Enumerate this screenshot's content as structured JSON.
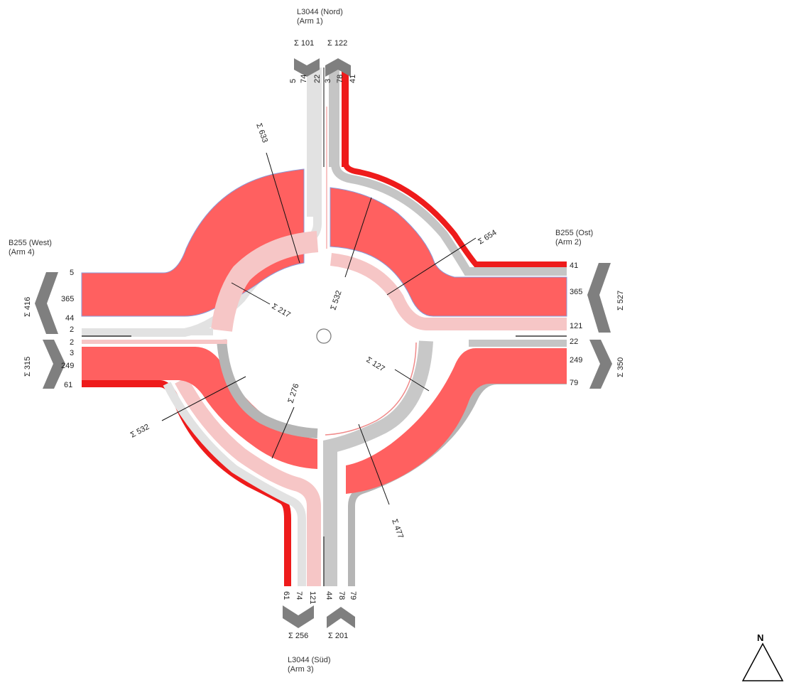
{
  "colors": {
    "red_heavy": "#ff6060",
    "red_strong": "#ee1b1b",
    "pink_light": "#f6c6c6",
    "gray": "#b5b5b5",
    "gray_light": "#e2e2e2",
    "arrow_gray": "#7f7f7f",
    "line": "#111111"
  },
  "arms": {
    "north": {
      "name": "L3044 (Nord)",
      "sub": "(Arm 1)",
      "sum_in": "Σ 101",
      "sum_out": "Σ 122",
      "lanes_in": [
        "5",
        "74",
        "22"
      ],
      "lanes_out": [
        "3",
        "78",
        "41"
      ]
    },
    "east": {
      "name": "B255 (Ost)",
      "sub": "(Arm 2)",
      "sum_in": "Σ 527",
      "sum_out": "Σ 350",
      "lanes_in": [
        "41",
        "365",
        "121"
      ],
      "lanes_out": [
        "22",
        "249",
        "79"
      ]
    },
    "south": {
      "name": "L3044 (Süd)",
      "sub": "(Arm 3)",
      "sum_in": "Σ 201",
      "sum_out": "Σ 256",
      "lanes_in": [
        "44",
        "78",
        "79"
      ],
      "lanes_out": [
        "61",
        "74",
        "121"
      ]
    },
    "west": {
      "name": "B255 (West)",
      "sub": "(Arm 4)",
      "sum_in": "Σ 416",
      "sum_out": "Σ 315",
      "lanes_in": [
        "5",
        "365",
        "44",
        "2"
      ],
      "lanes_out": [
        "2",
        "3",
        "249",
        "61"
      ]
    }
  },
  "cross_sections": {
    "nw_outer": "Σ 633",
    "nw_inner": "Σ 217",
    "ne_outer": "Σ 654",
    "ne_inner": "Σ 532",
    "se_inner": "Σ 127",
    "se_outer": "Σ 477",
    "sw_outer": "Σ 532",
    "sw_inner": "Σ 276"
  },
  "compass": {
    "label": "N"
  }
}
